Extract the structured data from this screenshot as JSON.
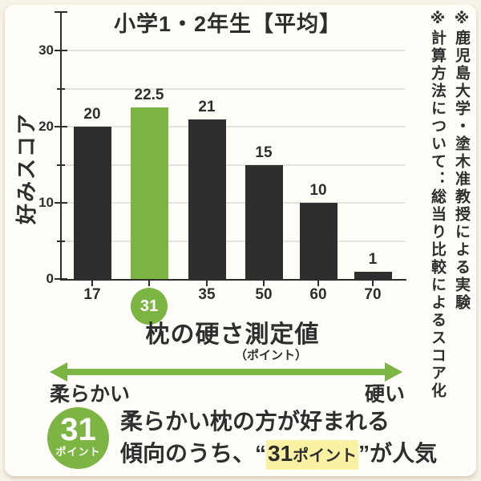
{
  "page": {
    "background_color": "#f6f2e7",
    "card_color": "#fffdf8",
    "text_color": "#2e2e2e"
  },
  "chart_data": {
    "type": "bar",
    "title": "小学1・2年生【平均】",
    "ylabel": "好みスコア",
    "xlabel": "枕の硬さ測定値",
    "xlabel_unit": "（ポイント）",
    "categories": [
      "17",
      "31",
      "35",
      "50",
      "60",
      "70"
    ],
    "values": [
      20,
      22.5,
      21,
      15,
      10,
      1
    ],
    "value_labels": [
      "20",
      "22.5",
      "21",
      "15",
      "10",
      "1"
    ],
    "highlight_index": 1,
    "highlight_category": "31",
    "ylim": [
      0,
      35
    ],
    "ytick_major": [
      0,
      10,
      20,
      30
    ],
    "ytick_minor": [
      5,
      15,
      25
    ],
    "gridlines": [
      5,
      10,
      15,
      20,
      25,
      30
    ],
    "grid_on": true,
    "legend": "none",
    "bar_color": "#2e2e2e",
    "highlight_color": "#7cb544"
  },
  "notes": {
    "note1": "※鹿児島大学・塗木准教授による実験",
    "note2": "※計算方法について：総当り比較によるスコア化"
  },
  "axis_arrow": {
    "left_label": "柔らかい",
    "right_label": "硬い",
    "color": "#7cb544"
  },
  "callout": {
    "badge_value": "31",
    "badge_unit": "ポイント",
    "line1": "柔らかい枕の方が好まれる",
    "line2_prefix": "傾向のうち、",
    "quote_open": "“",
    "highlight_value": "31",
    "highlight_unit": "ポイント",
    "quote_close": "”",
    "line2_suffix": "が人気",
    "highlight_bg_color": "#fbf1a3"
  }
}
